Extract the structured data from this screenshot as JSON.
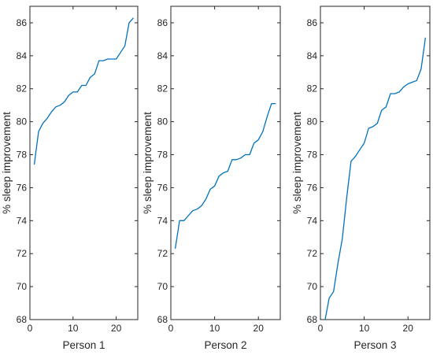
{
  "chart_data": [
    {
      "type": "line",
      "xlabel": "Person 1",
      "ylabel": "% sleep improvement",
      "xlim": [
        0,
        25
      ],
      "ylim": [
        68,
        87
      ],
      "xticks": [
        0,
        10,
        20
      ],
      "yticks": [
        68,
        70,
        72,
        74,
        76,
        78,
        80,
        82,
        84,
        86
      ],
      "grid": false,
      "line_color": "#0072BD",
      "series": [
        {
          "x": [
            1,
            2,
            3,
            4,
            5,
            6,
            7,
            8,
            9,
            10,
            11,
            12,
            13,
            14,
            15,
            16,
            17,
            18,
            19,
            20,
            21,
            22,
            23,
            24
          ],
          "y": [
            77.4,
            79.4,
            79.9,
            80.2,
            80.6,
            80.9,
            81.0,
            81.2,
            81.6,
            81.8,
            81.8,
            82.2,
            82.2,
            82.7,
            82.9,
            83.7,
            83.7,
            83.8,
            83.8,
            83.8,
            84.2,
            84.6,
            86.0,
            86.3
          ]
        }
      ]
    },
    {
      "type": "line",
      "xlabel": "Person 2",
      "ylabel": "% sleep improvement",
      "xlim": [
        0,
        25
      ],
      "ylim": [
        68,
        87
      ],
      "xticks": [
        0,
        10,
        20
      ],
      "yticks": [
        68,
        70,
        72,
        74,
        76,
        78,
        80,
        82,
        84,
        86
      ],
      "grid": false,
      "line_color": "#0072BD",
      "series": [
        {
          "x": [
            1,
            2,
            3,
            4,
            5,
            6,
            7,
            8,
            9,
            10,
            11,
            12,
            13,
            14,
            15,
            16,
            17,
            18,
            19,
            20,
            21,
            22,
            23,
            24
          ],
          "y": [
            72.3,
            74.0,
            74.0,
            74.3,
            74.6,
            74.7,
            74.9,
            75.3,
            75.9,
            76.1,
            76.7,
            76.9,
            77.0,
            77.7,
            77.7,
            77.8,
            78.0,
            78.0,
            78.7,
            78.9,
            79.4,
            80.3,
            81.1,
            81.1
          ]
        }
      ]
    },
    {
      "type": "line",
      "xlabel": "Person 3",
      "ylabel": "% sleep improvement",
      "xlim": [
        0,
        25
      ],
      "ylim": [
        68,
        87
      ],
      "xticks": [
        0,
        10,
        20
      ],
      "yticks": [
        68,
        70,
        72,
        74,
        76,
        78,
        80,
        82,
        84,
        86
      ],
      "grid": false,
      "line_color": "#0072BD",
      "series": [
        {
          "x": [
            1,
            2,
            3,
            4,
            5,
            6,
            7,
            8,
            9,
            10,
            11,
            12,
            13,
            14,
            15,
            16,
            17,
            18,
            19,
            20,
            21,
            22,
            23,
            24
          ],
          "y": [
            67.9,
            69.3,
            69.7,
            71.4,
            72.9,
            75.4,
            77.6,
            77.9,
            78.3,
            78.7,
            79.6,
            79.7,
            79.9,
            80.7,
            80.9,
            81.7,
            81.7,
            81.8,
            82.1,
            82.3,
            82.4,
            82.5,
            83.2,
            85.1
          ]
        }
      ]
    }
  ]
}
